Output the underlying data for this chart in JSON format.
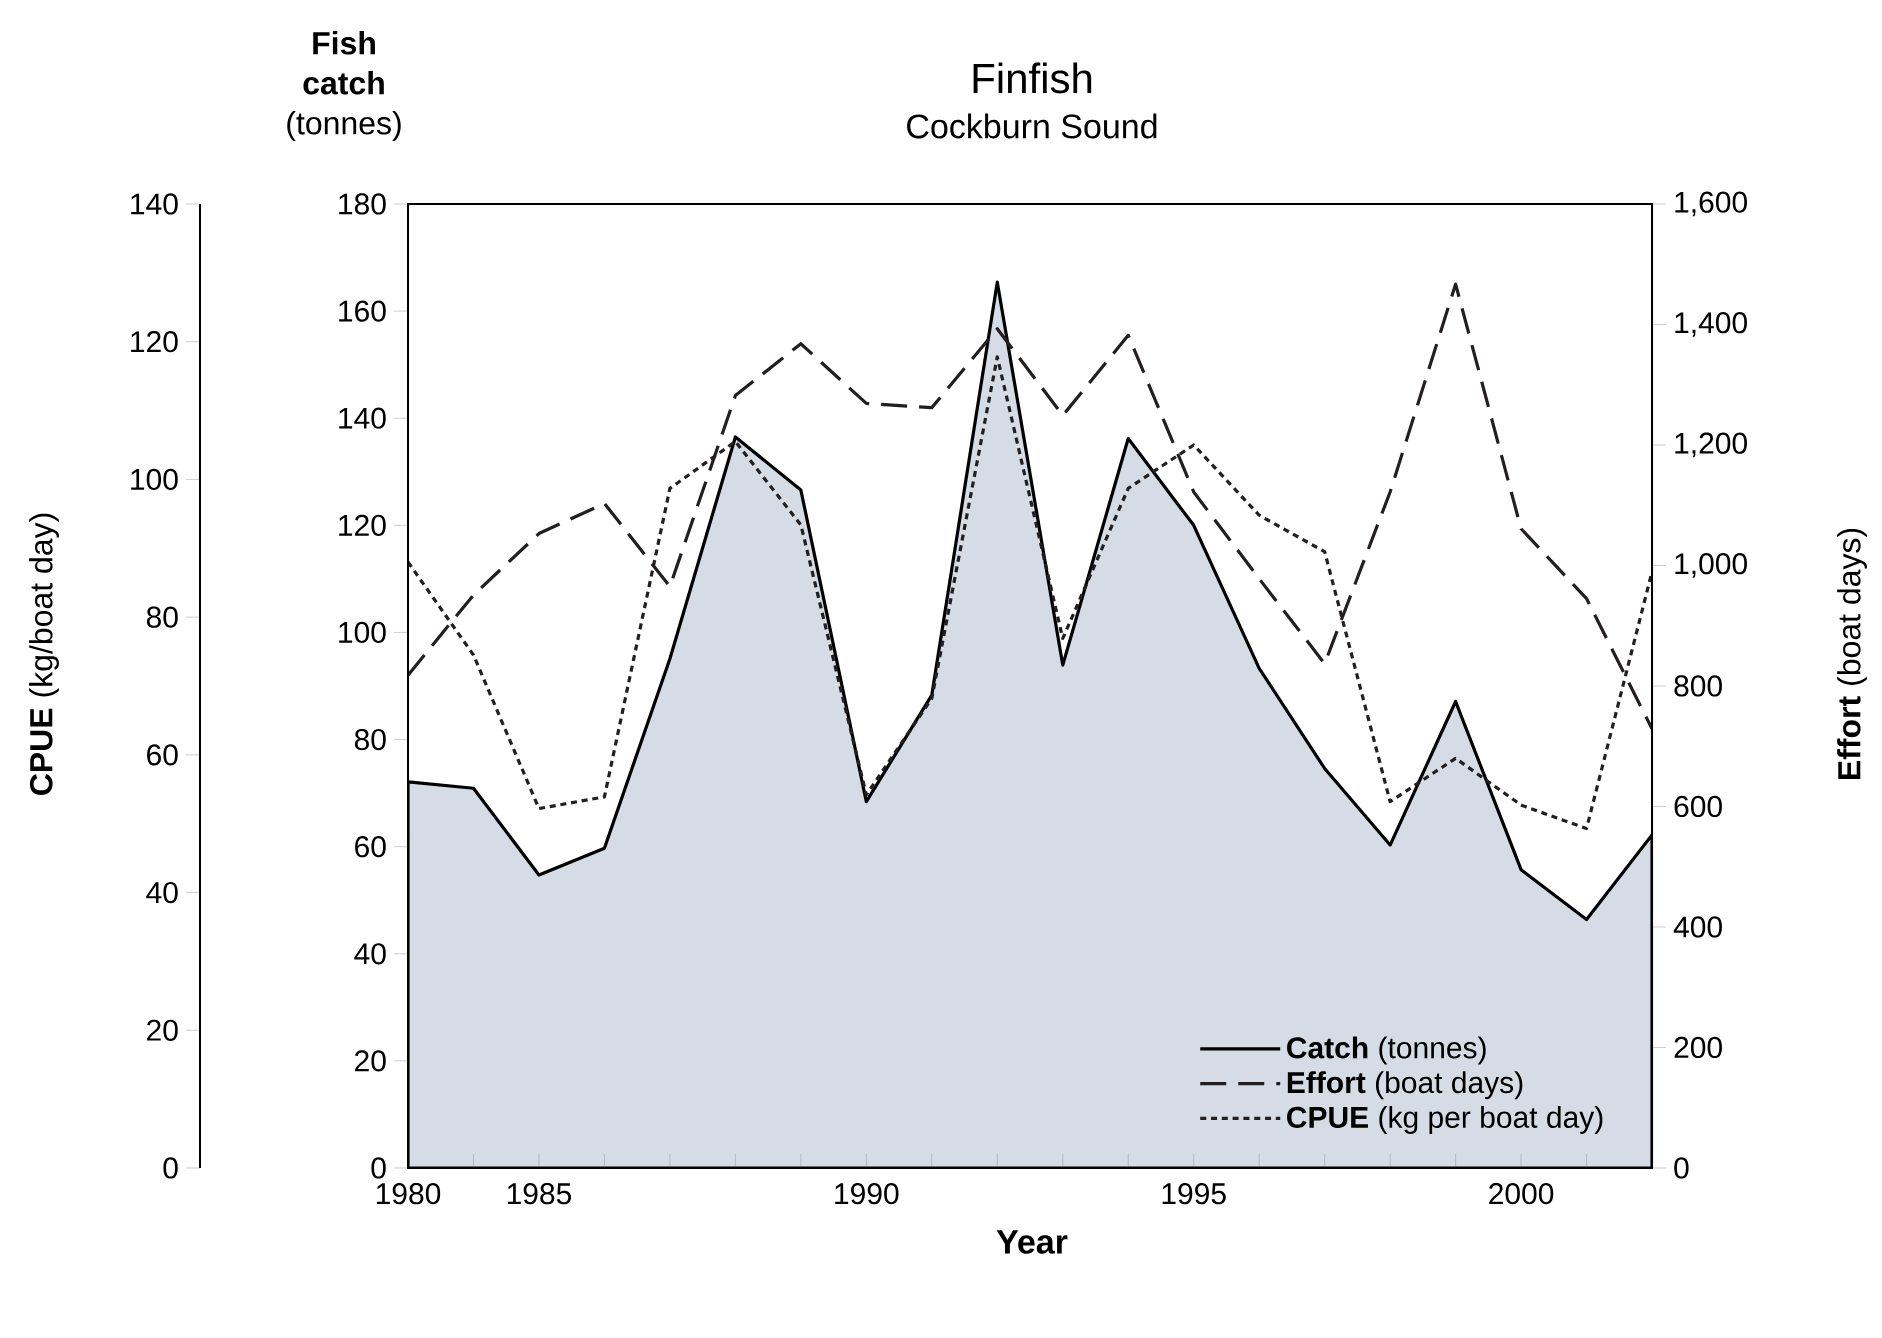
{
  "chart_data": {
    "type": "line",
    "title": "Finfish",
    "subtitle": "Cockburn Sound",
    "xlabel": "Year",
    "ylabel": "**Fish catch** (tonnes)",
    "y2label": "**Effort** (boat days)",
    "y3label": "**CPUE** (kg/boat day)",
    "categories": [
      "1980",
      null,
      "1985",
      null,
      null,
      null,
      null,
      "1990",
      null,
      null,
      null,
      null,
      "1995",
      null,
      null,
      null,
      null,
      "2000",
      null,
      null
    ],
    "ylim": [
      0,
      180
    ],
    "yticks": [
      0,
      20,
      40,
      60,
      80,
      100,
      120,
      140,
      160,
      180
    ],
    "y2lim": [
      0,
      1600
    ],
    "y2ticks": [
      0,
      200,
      400,
      600,
      800,
      {
        "value": 1000,
        "label": "1,000"
      },
      {
        "value": 1200,
        "label": "1,200"
      },
      {
        "value": 1400,
        "label": "1,400"
      },
      {
        "value": 1600,
        "label": "1,600"
      }
    ],
    "y3lim": [
      0,
      140
    ],
    "y3ticks": [
      0,
      20,
      40,
      60,
      80,
      100,
      120,
      140
    ],
    "legend": "bottom right",
    "grid": false,
    "series": [
      {
        "name": "**Catch** (tonnes)",
        "type": "area",
        "axis": "y",
        "color": "#d5dce5",
        "line_style": "solid",
        "values": [
          72.1,
          70.9,
          54.7,
          59.7,
          95.1,
          136.5,
          126.6,
          68.4,
          88.3,
          165.4,
          93.9,
          136.2,
          120.0,
          93.3,
          74.6,
          60.3,
          87.1,
          55.7,
          46.4,
          62.2
        ]
      },
      {
        "name": "**Effort** (boat days)",
        "axis": "y2",
        "color": "#231f20",
        "line_style": "dashed",
        "values": [
          818,
          951,
          1053,
          1103,
          965,
          1282,
          1368,
          1269,
          1262,
          1393,
          1249,
          1382,
          1122,
          978,
          837,
          1122,
          1467,
          1061,
          945,
          729
        ]
      },
      {
        "name": "**CPUE** (kg per boat day)",
        "axis": "y3",
        "color": "#231f20",
        "line_style": "dotted",
        "values": [
          88.0,
          74.5,
          52.2,
          53.9,
          98.7,
          105.5,
          93.4,
          54.2,
          68.2,
          117.8,
          76.9,
          98.7,
          105.0,
          94.8,
          89.5,
          53.2,
          59.5,
          52.7,
          49.3,
          86.6
        ]
      }
    ]
  }
}
